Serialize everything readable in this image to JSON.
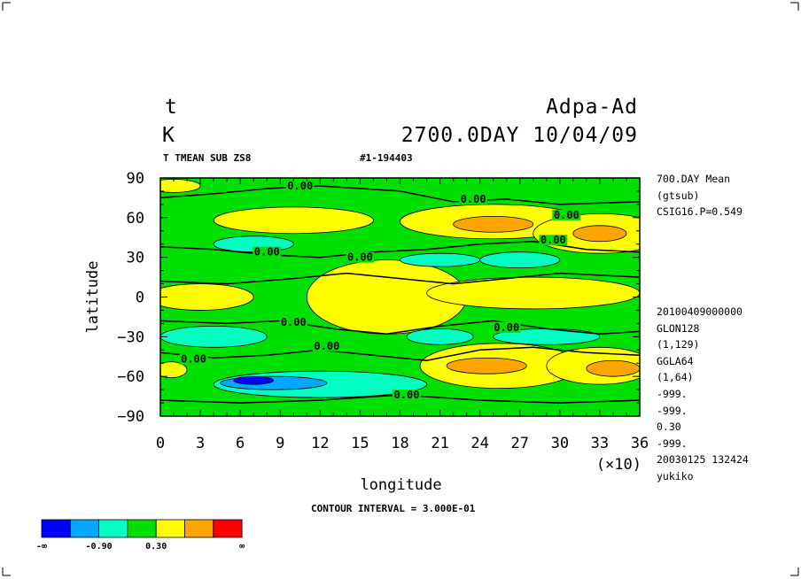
{
  "title": {
    "variable": "t",
    "unit": "K",
    "experiment": "Adpa-Ad",
    "time": "2700.0DAY 10/04/09",
    "description": "T TMEAN SUB ZS8",
    "range": "#1-194403"
  },
  "side_info": {
    "top": [
      "700.DAY Mean",
      "(gtsub)",
      "CSIG16.P=0.549"
    ],
    "bottom": [
      "20100409000000",
      "GLON128",
      "(1,129)",
      "GGLA64",
      "(1,64)",
      "-999.",
      "-999.",
      "0.30",
      "-999.",
      "20030125 132424",
      "yukiko"
    ]
  },
  "footer": {
    "contour_interval": "CONTOUR INTERVAL = 3.000E-01"
  },
  "colorbar": {
    "colors": [
      "#0000ff",
      "#00a8ff",
      "#00ffc0",
      "#00e000",
      "#ffff00",
      "#ffa500",
      "#ff0000"
    ],
    "labels": [
      "-∞",
      "-0.90",
      "0.30",
      "∞"
    ]
  },
  "chart_data": {
    "type": "heatmap",
    "xlabel": "longitude",
    "ylabel": "latitude",
    "x_multiplier": "(×10)",
    "xlim": [
      0,
      36
    ],
    "ylim": [
      -90,
      90
    ],
    "xticks": [
      "0",
      "3",
      "6",
      "9",
      "12",
      "15",
      "18",
      "21",
      "24",
      "27",
      "30",
      "33",
      "36"
    ],
    "yticks": [
      "90",
      "60",
      "30",
      "0",
      "−30",
      "−60",
      "−90"
    ],
    "background_level": "0.00 to 0.30",
    "contour_labels": [
      {
        "text": "0.00",
        "x": 10.5,
        "y": 84
      },
      {
        "text": "0.00",
        "x": 23.5,
        "y": 74
      },
      {
        "text": "0.00",
        "x": 30.5,
        "y": 62
      },
      {
        "text": "0.00",
        "x": 29.5,
        "y": 43
      },
      {
        "text": "0.00",
        "x": 8,
        "y": 34
      },
      {
        "text": "0.00",
        "x": 15,
        "y": 30
      },
      {
        "text": "0.00",
        "x": 10,
        "y": -19
      },
      {
        "text": "0.00",
        "x": 12.5,
        "y": -37
      },
      {
        "text": "0.00",
        "x": 26,
        "y": -23
      },
      {
        "text": "0.00",
        "x": 2.5,
        "y": -47
      },
      {
        "text": "0.00",
        "x": 18.5,
        "y": -74
      }
    ],
    "regions": [
      {
        "level": "0.30 to 0.60",
        "cx": 1,
        "cy": 84,
        "rx": 2,
        "ry": 5
      },
      {
        "level": "0.30 to 0.60",
        "cx": 10,
        "cy": 58,
        "rx": 6,
        "ry": 10
      },
      {
        "level": "0.30 to 0.60",
        "cx": 25,
        "cy": 57,
        "rx": 7,
        "ry": 13
      },
      {
        "level": "0.60 to 0.90",
        "cx": 25,
        "cy": 55,
        "rx": 3,
        "ry": 6
      },
      {
        "level": "0.30 to 0.60",
        "cx": 33,
        "cy": 48,
        "rx": 5,
        "ry": 15
      },
      {
        "level": "0.60 to 0.90",
        "cx": 33,
        "cy": 48,
        "rx": 2,
        "ry": 6
      },
      {
        "level": "0.30 to 0.60",
        "cx": 17,
        "cy": 0,
        "rx": 6,
        "ry": 28
      },
      {
        "level": "0.30 to 0.60",
        "cx": 3,
        "cy": 0,
        "rx": 4,
        "ry": 10
      },
      {
        "level": "0.30 to 0.60",
        "cx": 28,
        "cy": 3,
        "rx": 8,
        "ry": 12
      },
      {
        "level": "0.30 to 0.60",
        "cx": 25.5,
        "cy": -52,
        "rx": 6,
        "ry": 17
      },
      {
        "level": "0.60 to 0.90",
        "cx": 24.5,
        "cy": -52,
        "rx": 3,
        "ry": 6
      },
      {
        "level": "0.30 to 0.60",
        "cx": 33,
        "cy": -52,
        "rx": 4,
        "ry": 14
      },
      {
        "level": "0.60 to 0.90",
        "cx": 34,
        "cy": -54,
        "rx": 2,
        "ry": 6
      },
      {
        "level": "0.30 to 0.60",
        "cx": 0.8,
        "cy": -55,
        "rx": 1.2,
        "ry": 6
      },
      {
        "level": "-0.30 to 0.00",
        "cx": 7,
        "cy": 40,
        "rx": 3,
        "ry": 6
      },
      {
        "level": "-0.30 to 0.00",
        "cx": 21,
        "cy": 28,
        "rx": 3,
        "ry": 5
      },
      {
        "level": "-0.30 to 0.00",
        "cx": 27,
        "cy": 28,
        "rx": 3,
        "ry": 6
      },
      {
        "level": "-0.30 to 0.00",
        "cx": 4,
        "cy": -30,
        "rx": 4,
        "ry": 8
      },
      {
        "level": "-0.30 to 0.00",
        "cx": 21,
        "cy": -30,
        "rx": 2.5,
        "ry": 6
      },
      {
        "level": "-0.30 to 0.00",
        "cx": 29,
        "cy": -30,
        "rx": 4,
        "ry": 6
      },
      {
        "level": "-0.30 to 0.00",
        "cx": 12,
        "cy": -66,
        "rx": 8,
        "ry": 10
      },
      {
        "level": "-0.60 to -0.30",
        "cx": 8.5,
        "cy": -65,
        "rx": 4,
        "ry": 5
      },
      {
        "level": "-0.90 to -0.60",
        "cx": 7,
        "cy": -63,
        "rx": 1.5,
        "ry": 3
      }
    ]
  }
}
